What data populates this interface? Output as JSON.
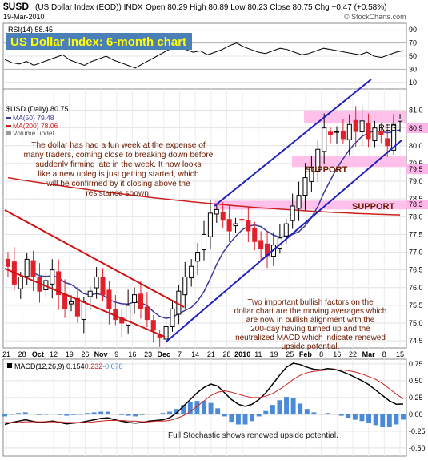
{
  "header": {
    "symbol": "$USD",
    "name": "(US Dollar Index (EOD)) INDX",
    "date": "19-Mar-2010",
    "open_label": "Open",
    "open": "80.29",
    "high_label": "High",
    "high": "80.89",
    "low_label": "Low",
    "low": "80.23",
    "close_label": "Close",
    "close": "80.75",
    "chg_label": "Chg",
    "chg": "+0.47 (+0.58%)",
    "brand": "© StockCharts.com"
  },
  "title": "US Dollar Index: 6-month chart",
  "rsi": {
    "label": "RSI(14) 58.45",
    "ticks": [
      90,
      70,
      50,
      30,
      10
    ],
    "ylim": [
      0,
      100
    ],
    "values": [
      45,
      40,
      38,
      42,
      36,
      40,
      44,
      48,
      52,
      44,
      40,
      36,
      42,
      46,
      50,
      44,
      40,
      36,
      32,
      38,
      44,
      50,
      56,
      62,
      66,
      60,
      56,
      58,
      52,
      56,
      60,
      66,
      70,
      64,
      60,
      56,
      54,
      58,
      62,
      60,
      56,
      52,
      54,
      58,
      62,
      60,
      58,
      56,
      54,
      52,
      56,
      50,
      48,
      52,
      56,
      58.45
    ]
  },
  "price": {
    "legend": {
      "main": "$USD (Daily) 80.75",
      "ma50": "MA(50) 79.48",
      "ma200": "MA(200) 78.06",
      "volume": "Volume undef"
    },
    "ticks": [
      81.0,
      80.5,
      80.0,
      79.5,
      79.0,
      78.5,
      78.0,
      77.5,
      77.0,
      76.5,
      76.0,
      75.5,
      75.0,
      74.5
    ],
    "ylim": [
      74.3,
      81.6
    ],
    "highlight_labels": [
      "80.9",
      "79.5",
      "78.3"
    ],
    "zones": [
      {
        "label": "RES.",
        "low": 80.65,
        "high": 80.98
      },
      {
        "label": "SUPPORT",
        "low": 79.4,
        "high": 79.7
      },
      {
        "label": "SUPPORT",
        "low": 78.2,
        "high": 78.45
      }
    ],
    "text_top": "The dollar has had a fun week at the expense of many traders, coming close to breaking down before suddenly firming late in the week. It now looks like a new upleg is just getting started, which will be confirmed by it closing above the resistance shown.",
    "text_bottom": "Two important bullish factors on the dollar chart are the moving averages which are now in bullish alignment with the 200-day having turned up and the neutralized MACD which indicate renewed upside potential."
  },
  "x_axis": {
    "labels": [
      "21",
      "28",
      "Oct",
      "12",
      "19",
      "26",
      "Nov",
      "9",
      "16",
      "23",
      "Dec",
      "7",
      "14",
      "21",
      "28",
      "2010",
      "11",
      "19",
      "25",
      "Feb",
      "8",
      "16",
      "22",
      "Mar",
      "8",
      "15"
    ]
  },
  "macd": {
    "label_prefix": "MACD(12,26,9)",
    "macd_value": "0.154",
    "signal_value": "0.232",
    "hist_value": "-0.078",
    "ticks": [
      "0.75",
      "0.50",
      "0.25",
      "0.00",
      "-0.25",
      "-0.50"
    ],
    "ylim": [
      -0.62,
      0.82
    ],
    "annotation": "Full Stochastic shows renewed upside potential."
  },
  "chart_data": {
    "type": "line",
    "series_main": "$USD (Daily) 80.75",
    "ma50_name": "MA(50) 79.48",
    "ma200_name": "MA(200) 78.06",
    "x_range": [
      "21 Sep 2009",
      "19 Mar 2010"
    ],
    "price_ylim": [
      74.3,
      81.6
    ],
    "close_estimate": [
      76.6,
      76.1,
      76.3,
      76.8,
      76.3,
      75.9,
      76.2,
      76.5,
      75.8,
      75.4,
      75.6,
      75.2,
      75.6,
      75.9,
      76.3,
      75.8,
      75.4,
      75.1,
      75.0,
      75.5,
      75.8,
      75.4,
      75.1,
      74.8,
      74.6,
      74.9,
      75.4,
      75.9,
      76.3,
      76.6,
      77.0,
      77.5,
      78.1,
      78.2,
      77.9,
      77.6,
      77.8,
      77.9,
      77.6,
      77.3,
      77.1,
      76.9,
      77.2,
      77.4,
      77.8,
      78.3,
      78.6,
      79.1,
      79.4,
      79.9,
      80.5,
      80.3,
      80.4,
      80.2,
      80.6,
      80.4,
      80.7,
      80.2,
      80.5,
      80.3,
      80.0,
      80.6,
      80.75
    ],
    "macd_ylim": [
      -0.62,
      0.82
    ],
    "macd_values": [
      -0.15,
      -0.12,
      -0.1,
      -0.08,
      -0.1,
      -0.12,
      -0.11,
      -0.1,
      -0.12,
      -0.14,
      -0.13,
      -0.12,
      -0.1,
      -0.08,
      -0.06,
      -0.05,
      -0.08,
      -0.1,
      -0.12,
      -0.13,
      -0.12,
      -0.1,
      -0.09,
      -0.08,
      -0.05,
      0.02,
      0.12,
      0.22,
      0.32,
      0.4,
      0.45,
      0.42,
      0.32,
      0.22,
      0.15,
      0.12,
      0.15,
      0.22,
      0.32,
      0.45,
      0.58,
      0.7,
      0.76,
      0.74,
      0.7,
      0.67,
      0.66,
      0.68,
      0.67,
      0.64,
      0.6,
      0.55,
      0.5,
      0.44,
      0.36,
      0.28,
      0.2,
      0.15,
      0.154
    ],
    "signal_values": [
      -0.12,
      -0.12,
      -0.12,
      -0.11,
      -0.11,
      -0.11,
      -0.11,
      -0.11,
      -0.11,
      -0.12,
      -0.12,
      -0.12,
      -0.12,
      -0.11,
      -0.1,
      -0.09,
      -0.09,
      -0.09,
      -0.1,
      -0.1,
      -0.11,
      -0.11,
      -0.1,
      -0.1,
      -0.09,
      -0.06,
      -0.02,
      0.04,
      0.12,
      0.2,
      0.28,
      0.33,
      0.35,
      0.33,
      0.3,
      0.27,
      0.25,
      0.25,
      0.27,
      0.31,
      0.37,
      0.44,
      0.52,
      0.58,
      0.62,
      0.64,
      0.65,
      0.66,
      0.66,
      0.66,
      0.65,
      0.63,
      0.6,
      0.56,
      0.52,
      0.46,
      0.38,
      0.3,
      0.232
    ],
    "annotations": [
      "RES.",
      "SUPPORT",
      "SUPPORT"
    ],
    "grid": true
  },
  "colors": {
    "price_up": "#000000",
    "price_down": "#e0202a",
    "ma50": "#3a3a9a",
    "ma200": "#cc2020",
    "trend_blue": "#2020c0",
    "trend_red": "#d01010",
    "zone": "#ffb6e8",
    "text_dark": "#6a1a00",
    "macd_hist": "#4a8ad8",
    "title_yellow": "#ffff00"
  }
}
